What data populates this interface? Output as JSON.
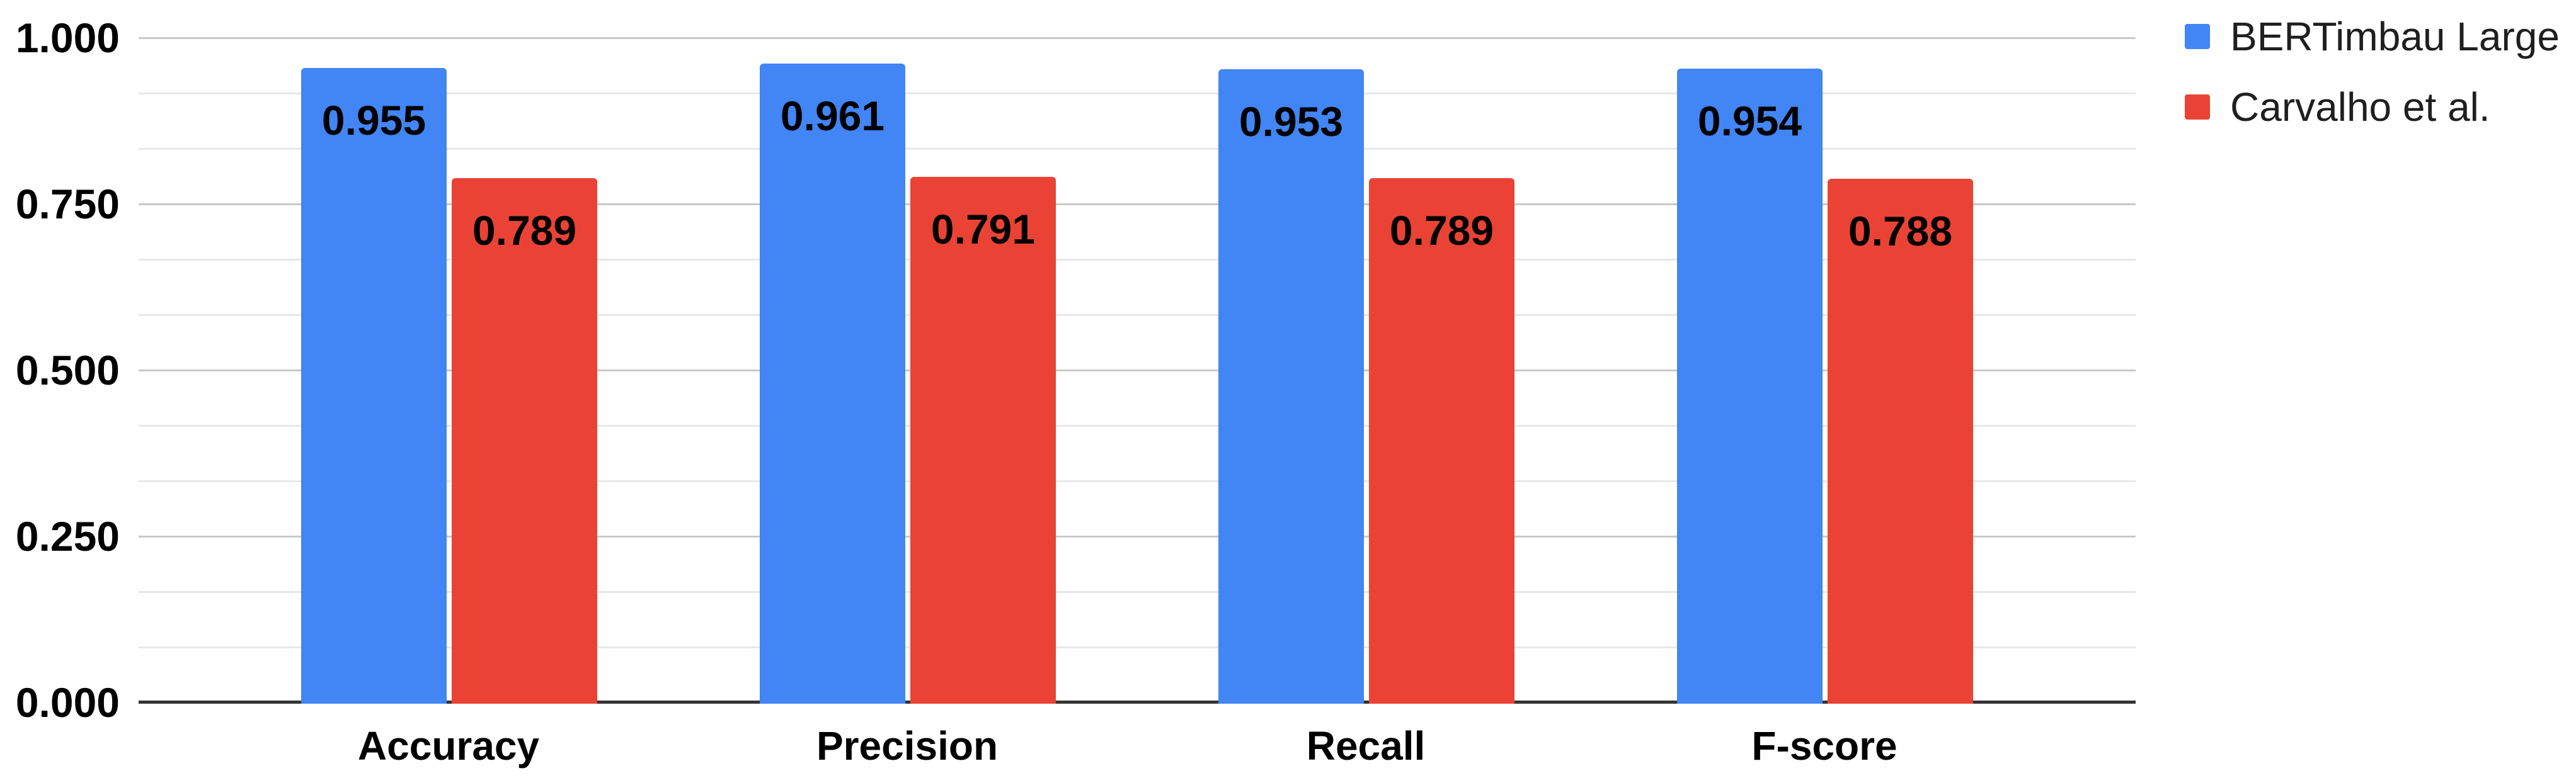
{
  "chart_data": {
    "type": "bar",
    "title": "",
    "xlabel": "",
    "ylabel": "",
    "categories": [
      "Accuracy",
      "Precision",
      "Recall",
      "F-score"
    ],
    "series": [
      {
        "name": "BERTimbau Large",
        "color": "#4285f4",
        "values": [
          0.955,
          0.961,
          0.953,
          0.954
        ],
        "data_labels": [
          "0.955",
          "0.961",
          "0.953",
          "0.954"
        ]
      },
      {
        "name": "Carvalho et al.",
        "color": "#ea4335",
        "values": [
          0.789,
          0.791,
          0.789,
          0.788
        ],
        "data_labels": [
          "0.789",
          "0.791",
          "0.789",
          "0.788"
        ]
      }
    ],
    "y_axis": {
      "min": 0,
      "max": 1,
      "major_tick_labels": [
        "1.000",
        "0.750",
        "0.500",
        "0.250",
        "0.000"
      ],
      "major_tick_values": [
        1.0,
        0.75,
        0.5,
        0.25,
        0.0
      ],
      "minor_gridline_step": 0.0833333
    },
    "grid": true,
    "legend_position": "right"
  },
  "colors": {
    "series_blue": "#4285f4",
    "series_red": "#ea4335",
    "axis_line": "#333333",
    "major_gridline": "#c9c9c9",
    "minor_gridline": "#e8e8e8",
    "label_text": "#000000",
    "legend_text": "#1f1f1f",
    "background": "#ffffff"
  }
}
